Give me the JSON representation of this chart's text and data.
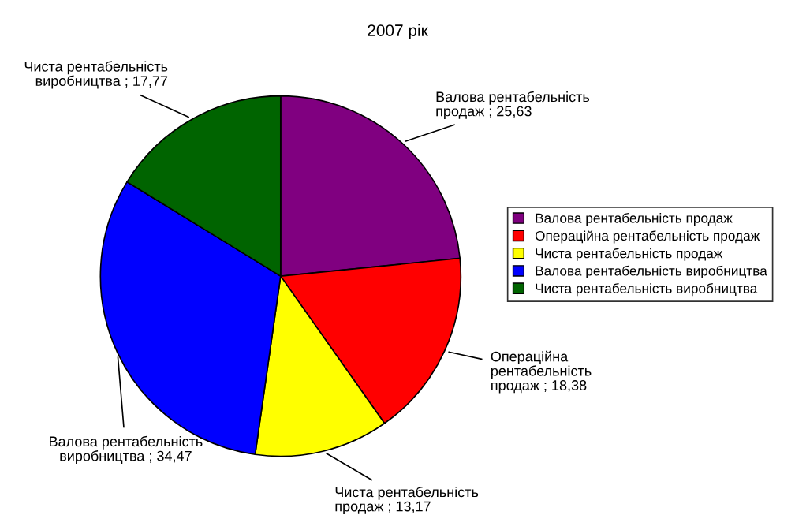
{
  "chart_data": {
    "type": "pie",
    "title": "2007 рік",
    "categories": [
      "Валова рентабельність продаж",
      "Операційна рентабельність продаж",
      "Чиста рентабельність продаж",
      "Валова рентабельність виробництва",
      "Чиста рентабельність виробництва"
    ],
    "values": [
      25.63,
      18.38,
      13.17,
      34.47,
      17.77
    ],
    "colors": [
      "#800080",
      "#ff0000",
      "#ffff00",
      "#0000ff",
      "#006400"
    ],
    "value_labels": [
      "Валова рентабельність\nпродаж ; 25,63",
      "Операційна\nрентабельність\nпродаж ; 18,38",
      "Чиста рентабельність\nпродаж ; 13,17",
      "Валова рентабельність\nвиробництва ; 34,47",
      "Чиста рентабельність\nвиробництва ; 17,77"
    ],
    "legend": "right"
  }
}
